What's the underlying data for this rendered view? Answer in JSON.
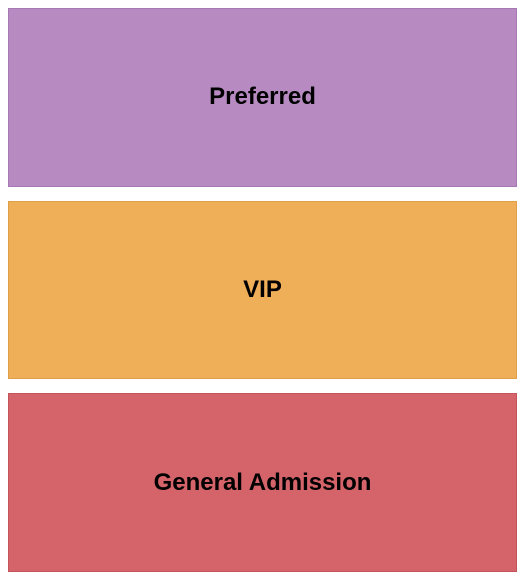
{
  "seating_chart": {
    "type": "infographic",
    "background_color": "#ffffff",
    "gap": 14,
    "padding": 8,
    "sections": [
      {
        "label": "Preferred",
        "background_color": "#b78ac2",
        "border_color": "#a878b5",
        "font_size": 24,
        "font_weight": "bold"
      },
      {
        "label": "VIP",
        "background_color": "#efae58",
        "border_color": "#e09e48",
        "font_size": 24,
        "font_weight": "bold"
      },
      {
        "label": "General Admission",
        "background_color": "#d5646a",
        "border_color": "#c5545a",
        "font_size": 24,
        "font_weight": "bold"
      }
    ]
  }
}
